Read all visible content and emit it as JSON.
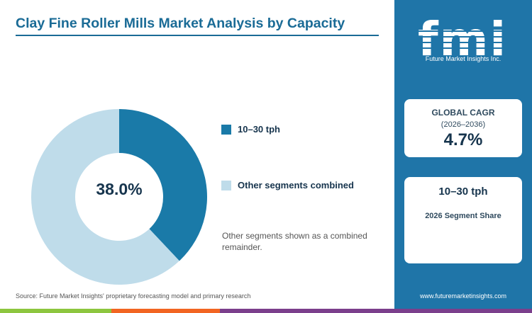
{
  "title": "Clay Fine Roller Mills Market Analysis by Capacity",
  "chart_data": {
    "type": "pie",
    "variant": "donut",
    "title": "Clay Fine Roller Mills Market Analysis by Capacity",
    "categories": [
      "10–30 tph",
      "Other segments combined"
    ],
    "values": [
      38.0,
      62.0
    ],
    "colors": [
      "#1a7aa8",
      "#bfdcea"
    ],
    "center_label": "38.0%",
    "legend_placement": "right"
  },
  "legend": [
    {
      "label": "10–30 tph",
      "color": "#1a7aa8"
    },
    {
      "label": "Other segments combined",
      "color": "#bfdcea"
    }
  ],
  "note": "Other segments shown as a combined remainder.",
  "source": "Source: Future Market Insights' proprietary forecasting model and primary research",
  "sidebar": {
    "logo_letters": "fmi",
    "logo_subtitle": "Future Market Insights Inc.",
    "cagr_label": "GLOBAL CAGR",
    "cagr_period": "(2026–2036)",
    "cagr_value": "4.7%",
    "segment_name": "10–30 tph",
    "segment_caption": "2026 Segment Share",
    "website": "www.futuremarketinsights.com"
  },
  "colors": {
    "accent": "#1a6b96",
    "sidebar": "#1f75a8",
    "footer": [
      "#8dc63f",
      "#f26522",
      "#7b3f8c"
    ]
  }
}
